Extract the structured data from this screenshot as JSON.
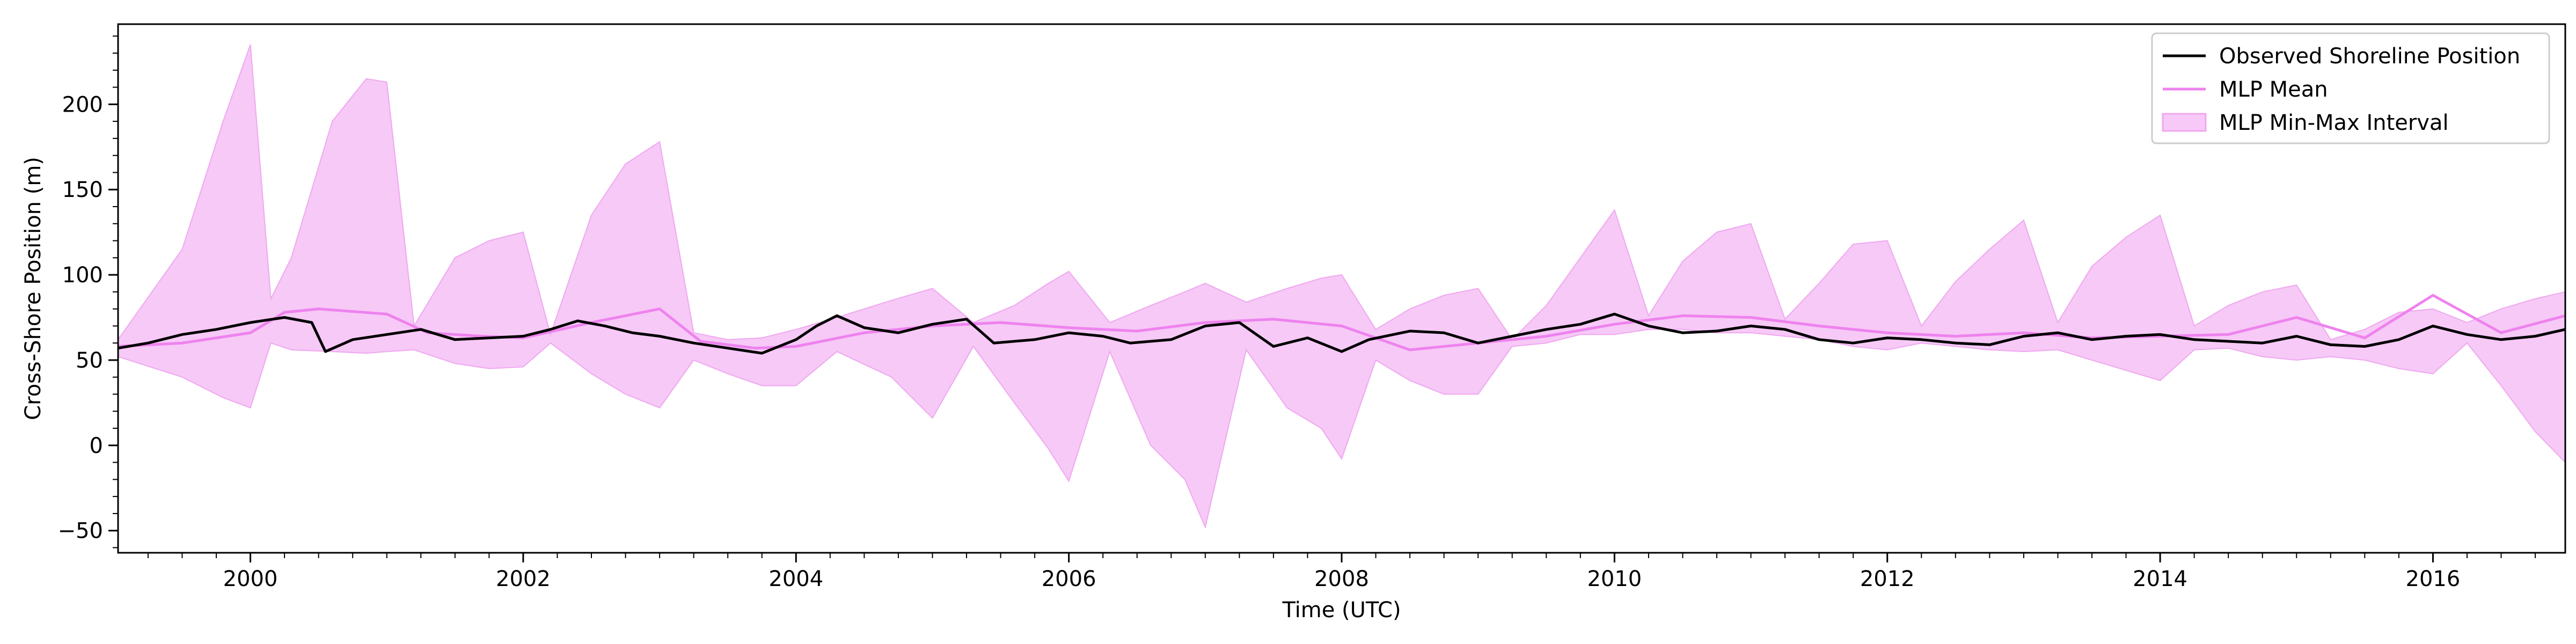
{
  "chart_data": {
    "type": "line",
    "title": "",
    "xlabel": "Time (UTC)",
    "ylabel": "Cross-Shore Position (m)",
    "xlim": [
      1999.03,
      2016.97
    ],
    "ylim": [
      -63,
      247
    ],
    "x_ticks": [
      2000,
      2002,
      2004,
      2006,
      2008,
      2010,
      2012,
      2014,
      2016
    ],
    "y_ticks": [
      -50,
      0,
      50,
      100,
      150,
      200
    ],
    "grid": false,
    "legend_position": "top-right",
    "legend": {
      "observed": "Observed Shoreline Position",
      "mean": "MLP Mean",
      "interval": "MLP Min-Max Interval"
    },
    "colors": {
      "observed": "#000000",
      "mean": "#ee82ee",
      "interval_fill": "#f6c9f6",
      "interval_edge": "#f0a8f0"
    },
    "series": [
      {
        "name": "Observed Shoreline Position",
        "x": [
          1999.03,
          1999.25,
          1999.5,
          1999.75,
          2000,
          2000.25,
          2000.45,
          2000.55,
          2000.75,
          2001,
          2001.25,
          2001.5,
          2001.75,
          2002,
          2002.2,
          2002.4,
          2002.6,
          2002.8,
          2003,
          2003.25,
          2003.5,
          2003.75,
          2004,
          2004.15,
          2004.3,
          2004.5,
          2004.75,
          2005,
          2005.25,
          2005.45,
          2005.75,
          2006,
          2006.25,
          2006.45,
          2006.75,
          2007,
          2007.25,
          2007.5,
          2007.75,
          2008,
          2008.2,
          2008.5,
          2008.75,
          2009,
          2009.25,
          2009.5,
          2009.75,
          2010,
          2010.25,
          2010.5,
          2010.75,
          2011,
          2011.25,
          2011.5,
          2011.75,
          2012,
          2012.25,
          2012.5,
          2012.75,
          2013,
          2013.25,
          2013.5,
          2013.75,
          2014,
          2014.25,
          2014.5,
          2014.75,
          2015,
          2015.25,
          2015.5,
          2015.75,
          2016,
          2016.25,
          2016.5,
          2016.75,
          2016.97
        ],
        "y": [
          57,
          60,
          65,
          68,
          72,
          75,
          72,
          55,
          62,
          65,
          68,
          62,
          63,
          64,
          68,
          73,
          70,
          66,
          64,
          60,
          57,
          54,
          62,
          70,
          76,
          69,
          66,
          71,
          74,
          60,
          62,
          66,
          64,
          60,
          62,
          70,
          72,
          58,
          63,
          55,
          62,
          67,
          66,
          60,
          64,
          68,
          71,
          77,
          70,
          66,
          67,
          70,
          68,
          62,
          60,
          63,
          62,
          60,
          59,
          64,
          66,
          62,
          64,
          65,
          62,
          61,
          60,
          64,
          59,
          58,
          62,
          70,
          65,
          62,
          64,
          68
        ]
      },
      {
        "name": "MLP Mean",
        "x": [
          1999.03,
          1999.5,
          2000,
          2000.25,
          2000.5,
          2001,
          2001.3,
          2001.7,
          2002,
          2002.5,
          2002.75,
          2003,
          2003.3,
          2003.7,
          2004,
          2004.5,
          2005,
          2005.5,
          2006,
          2006.5,
          2007,
          2007.5,
          2008,
          2008.5,
          2009,
          2009.5,
          2010,
          2010.5,
          2011,
          2011.5,
          2012,
          2012.5,
          2013,
          2013.5,
          2014,
          2014.5,
          2015,
          2015.5,
          2016,
          2016.5,
          2016.97
        ],
        "y": [
          58,
          60,
          66,
          78,
          80,
          77,
          66,
          64,
          63,
          72,
          76,
          80,
          61,
          57,
          58,
          66,
          70,
          72,
          69,
          67,
          72,
          74,
          70,
          56,
          60,
          64,
          71,
          76,
          75,
          70,
          66,
          64,
          66,
          63,
          64,
          65,
          75,
          63,
          88,
          66,
          76
        ]
      },
      {
        "name": "MLP Min-Max Interval",
        "x": [
          1999.03,
          1999.5,
          1999.8,
          2000,
          2000.15,
          2000.3,
          2000.6,
          2000.85,
          2001,
          2001.2,
          2001.5,
          2001.75,
          2002,
          2002.2,
          2002.5,
          2002.75,
          2003,
          2003.25,
          2003.5,
          2003.75,
          2004,
          2004.3,
          2004.7,
          2005,
          2005.3,
          2005.6,
          2005.85,
          2006,
          2006.3,
          2006.6,
          2006.85,
          2007,
          2007.3,
          2007.6,
          2007.85,
          2008,
          2008.25,
          2008.5,
          2008.75,
          2009,
          2009.25,
          2009.5,
          2009.75,
          2010,
          2010.25,
          2010.5,
          2010.75,
          2011,
          2011.25,
          2011.5,
          2011.75,
          2012,
          2012.25,
          2012.5,
          2012.75,
          2013,
          2013.25,
          2013.5,
          2013.75,
          2014,
          2014.25,
          2014.5,
          2014.75,
          2015,
          2015.25,
          2015.5,
          2015.75,
          2016,
          2016.25,
          2016.5,
          2016.75,
          2016.97
        ],
        "upper": [
          62,
          115,
          190,
          235,
          86,
          110,
          190,
          215,
          213,
          70,
          110,
          120,
          125,
          65,
          135,
          165,
          178,
          66,
          62,
          63,
          68,
          75,
          85,
          92,
          72,
          82,
          95,
          102,
          72,
          82,
          90,
          95,
          84,
          92,
          98,
          100,
          68,
          80,
          88,
          92,
          62,
          82,
          110,
          138,
          76,
          108,
          125,
          130,
          74,
          95,
          118,
          120,
          70,
          96,
          115,
          132,
          72,
          105,
          122,
          135,
          70,
          82,
          90,
          94,
          62,
          68,
          78,
          80,
          72,
          80,
          86,
          90
        ],
        "lower": [
          52,
          40,
          28,
          22,
          60,
          56,
          55,
          54,
          55,
          56,
          48,
          45,
          46,
          60,
          42,
          30,
          22,
          50,
          42,
          35,
          35,
          55,
          40,
          16,
          58,
          25,
          -2,
          -21,
          55,
          0,
          -20,
          -48,
          56,
          22,
          10,
          -8,
          50,
          38,
          30,
          30,
          58,
          60,
          65,
          65,
          68,
          68,
          66,
          66,
          64,
          62,
          58,
          56,
          60,
          58,
          56,
          55,
          56,
          50,
          44,
          38,
          56,
          57,
          52,
          50,
          52,
          50,
          45,
          42,
          60,
          35,
          8,
          -10
        ]
      }
    ]
  }
}
